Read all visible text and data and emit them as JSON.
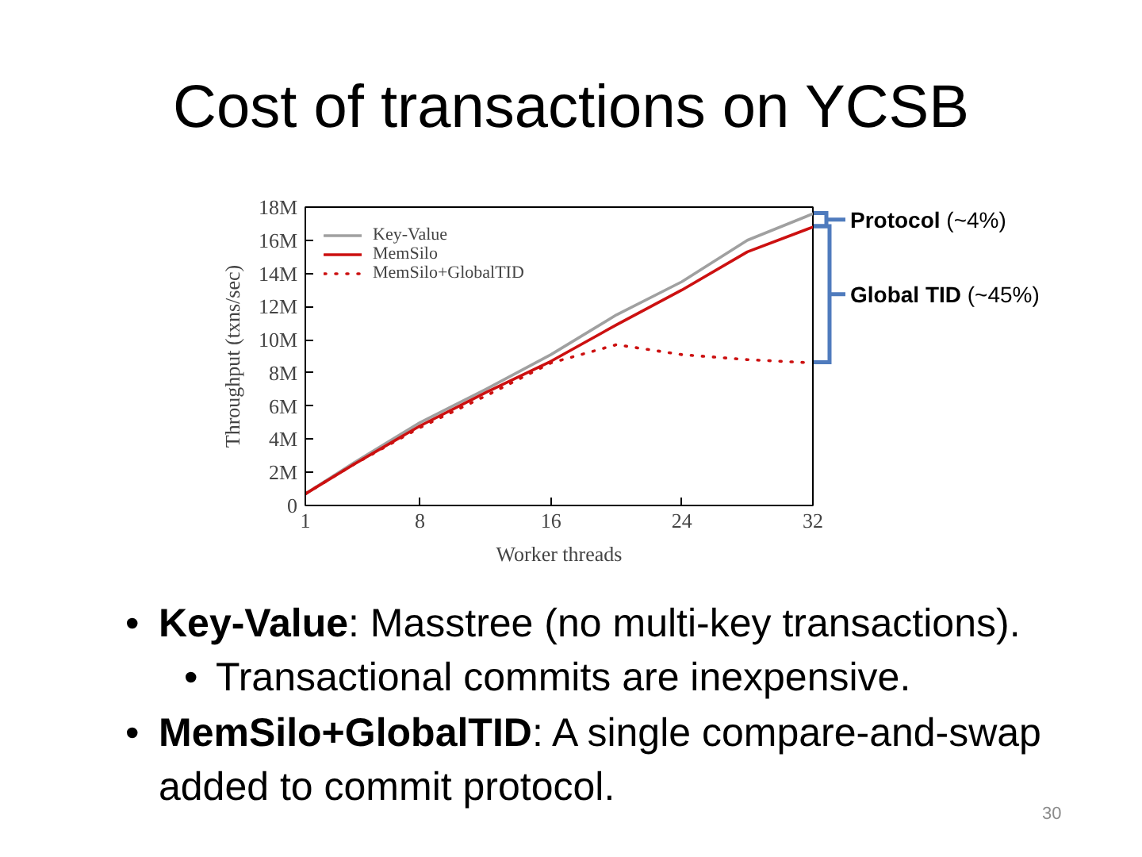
{
  "chart_data": {
    "type": "line",
    "title": "Cost of transactions on YCSB",
    "xlabel": "Worker threads",
    "ylabel": "Throughput (txns/sec)",
    "x": [
      1,
      4,
      8,
      12,
      16,
      20,
      24,
      28,
      32
    ],
    "series": [
      {
        "name": "Key-Value",
        "color": "#a0a0a0",
        "values": [
          700000,
          2600000,
          5000000,
          7000000,
          9100000,
          11500000,
          13500000,
          16000000,
          17600000
        ]
      },
      {
        "name": "MemSilo",
        "color": "#cc1010",
        "values": [
          700000,
          2500000,
          4800000,
          6800000,
          8700000,
          10900000,
          13000000,
          15300000,
          16800000
        ]
      },
      {
        "name": "MemSilo+GlobalTID",
        "color": "#cc1010",
        "line_style": "dotted",
        "values": [
          700000,
          2500000,
          4700000,
          6600000,
          8600000,
          9700000,
          9100000,
          8800000,
          8600000
        ]
      }
    ],
    "xlim": [
      1,
      32
    ],
    "xticks": [
      1,
      8,
      16,
      24,
      32
    ],
    "ylim": [
      0,
      18000000
    ],
    "yticks": [
      0,
      {
        "value": 2000000,
        "label": "2M"
      },
      {
        "value": 4000000,
        "label": "4M"
      },
      {
        "value": 6000000,
        "label": "6M"
      },
      {
        "value": 8000000,
        "label": "8M"
      },
      {
        "value": 10000000,
        "label": "10M"
      },
      {
        "value": 12000000,
        "label": "12M"
      },
      {
        "value": 14000000,
        "label": "14M"
      },
      {
        "value": 16000000,
        "label": "16M"
      },
      {
        "value": 18000000,
        "label": "18M"
      }
    ],
    "grid": false,
    "legend": "top left",
    "line_style": "solid",
    "annotations": [
      "Protocol (~4%)",
      "Global TID (~45%)",
      "• Key-Value: Masstree (no multi-key transactions).",
      "• Transactional commits are inexpensive.",
      "• MemSilo+GlobalTID: A single compare-and-swap added to commit protocol.",
      "30"
    ]
  }
}
